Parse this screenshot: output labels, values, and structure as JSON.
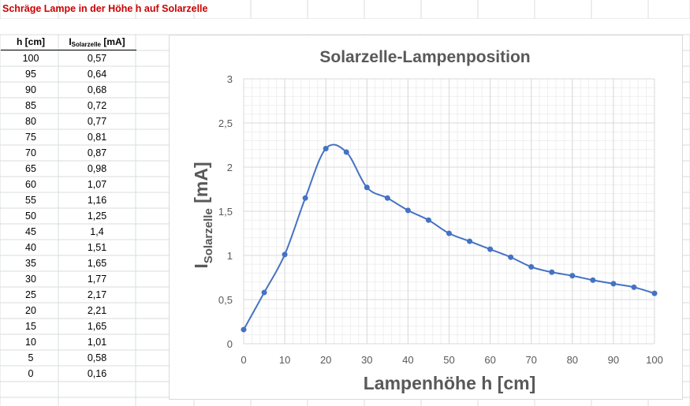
{
  "sheet": {
    "title": "Schräge Lampe in der Höhe h auf Solarzelle",
    "headers": {
      "h": "h [cm]",
      "i_main": "I",
      "i_sub": "Solarzelle",
      "i_unit": " [mA]"
    },
    "rows": [
      [
        "100",
        "0,57"
      ],
      [
        "95",
        "0,64"
      ],
      [
        "90",
        "0,68"
      ],
      [
        "85",
        "0,72"
      ],
      [
        "80",
        "0,77"
      ],
      [
        "75",
        "0,81"
      ],
      [
        "70",
        "0,87"
      ],
      [
        "65",
        "0,98"
      ],
      [
        "60",
        "1,07"
      ],
      [
        "55",
        "1,16"
      ],
      [
        "50",
        "1,25"
      ],
      [
        "45",
        "1,4"
      ],
      [
        "40",
        "1,51"
      ],
      [
        "35",
        "1,65"
      ],
      [
        "30",
        "1,77"
      ],
      [
        "25",
        "2,17"
      ],
      [
        "20",
        "2,21"
      ],
      [
        "15",
        "1,65"
      ],
      [
        "10",
        "1,01"
      ],
      [
        "5",
        "0,58"
      ],
      [
        "0",
        "0,16"
      ]
    ]
  },
  "colors": {
    "title_red": "#cc0000",
    "series": "#4472c4",
    "gridline": "#d9d9d9",
    "axis_text": "#595959"
  },
  "chart_data": {
    "type": "scatter",
    "smooth_lines": true,
    "title": "Solarzelle-Lampenposition",
    "xlabel": "Lampenhöhe h [cm]",
    "ylabel": {
      "main": "I",
      "sub": "Solarzelle",
      "unit": " [mA]"
    },
    "xlim": [
      0,
      100
    ],
    "ylim": [
      0,
      3
    ],
    "xticks": [
      0,
      10,
      20,
      30,
      40,
      50,
      60,
      70,
      80,
      90,
      100
    ],
    "yticks": [
      0,
      0.5,
      1,
      1.5,
      2,
      2.5,
      3
    ],
    "ytick_labels": [
      "0",
      "0,5",
      "1",
      "1,5",
      "2",
      "2,5",
      "3"
    ],
    "major_grid": true,
    "minor_grid": true,
    "legend": "none",
    "series": [
      {
        "x": [
          0,
          5,
          10,
          15,
          20,
          25,
          30,
          35,
          40,
          45,
          50,
          55,
          60,
          65,
          70,
          75,
          80,
          85,
          90,
          95,
          100
        ],
        "y": [
          0.16,
          0.58,
          1.01,
          1.65,
          2.21,
          2.17,
          1.77,
          1.65,
          1.51,
          1.4,
          1.25,
          1.16,
          1.07,
          0.98,
          0.87,
          0.81,
          0.77,
          0.72,
          0.68,
          0.64,
          0.57
        ]
      }
    ]
  }
}
